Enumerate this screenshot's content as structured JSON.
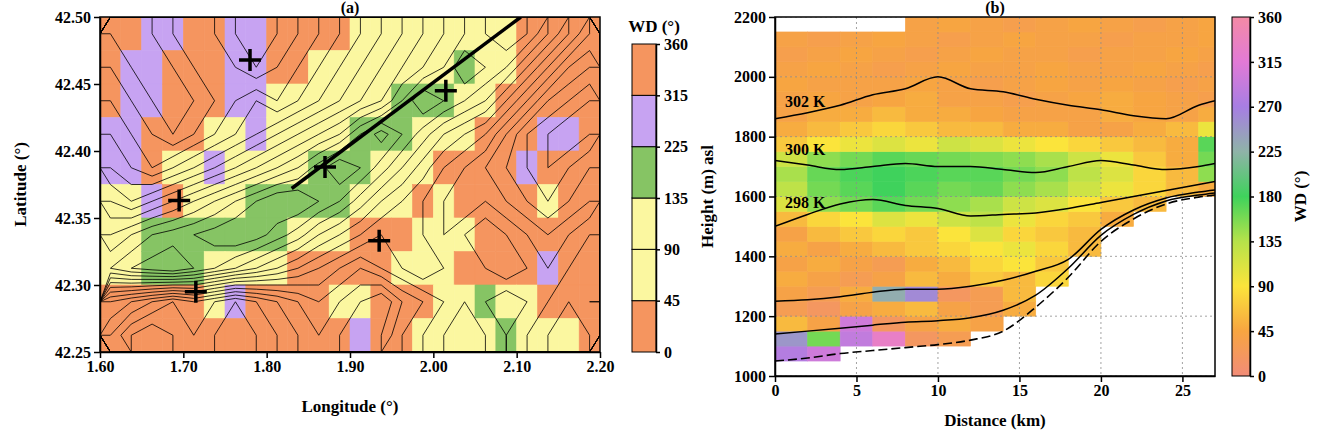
{
  "chart_data": [
    {
      "type": "map",
      "title": "(a)",
      "x_label": "Longitude (°)",
      "y_label": "Latitude (°)",
      "xlim": [
        1.6,
        2.2
      ],
      "ylim": [
        42.25,
        42.5
      ],
      "xticks": [
        {
          "value": 1.6,
          "label": "1.60"
        },
        {
          "value": 1.7,
          "label": "1.70"
        },
        {
          "value": 1.8,
          "label": "1.80"
        },
        {
          "value": 1.9,
          "label": "1.90"
        },
        {
          "value": 2.0,
          "label": "2.00"
        },
        {
          "value": 2.1,
          "label": "2.10"
        },
        {
          "value": 2.2,
          "label": "2.20"
        }
      ],
      "yticks": [
        42.25,
        {
          "value": 42.3,
          "label": "42.30"
        },
        42.35,
        {
          "value": 42.4,
          "label": "42.40"
        },
        42.45,
        {
          "value": 42.5,
          "label": "42.50"
        }
      ],
      "grid": false,
      "lon": [
        1.6125,
        1.6375,
        1.6625,
        1.6875,
        1.7125,
        1.7375,
        1.7625,
        1.7875,
        1.8125,
        1.8375,
        1.8625,
        1.8875,
        1.9125,
        1.9375,
        1.9625,
        1.9875,
        2.0125,
        2.0375,
        2.0625,
        2.0875,
        2.1125,
        2.1375,
        2.1625,
        2.1875
      ],
      "lat": [
        42.4875,
        42.4625,
        42.4375,
        42.4125,
        42.3875,
        42.3625,
        42.3375,
        42.3125,
        42.2875,
        42.2625
      ],
      "wd": [
        [
          20,
          330,
          300,
          280,
          20,
          40,
          300,
          270,
          330,
          10,
          30,
          350,
          60,
          80,
          70,
          100,
          60,
          80,
          120,
          100,
          20,
          30,
          340,
          10
        ],
        [
          40,
          300,
          280,
          320,
          10,
          350,
          290,
          300,
          20,
          340,
          60,
          80,
          70,
          100,
          90,
          110,
          130,
          160,
          100,
          60,
          30,
          10,
          350,
          20
        ],
        [
          10,
          270,
          290,
          350,
          30,
          20,
          310,
          280,
          60,
          80,
          100,
          70,
          90,
          120,
          140,
          170,
          150,
          80,
          60,
          40,
          20,
          340,
          320,
          30
        ],
        [
          300,
          280,
          320,
          20,
          40,
          60,
          80,
          290,
          100,
          70,
          90,
          110,
          150,
          170,
          160,
          120,
          80,
          60,
          30,
          350,
          10,
          300,
          280,
          20
        ],
        [
          280,
          260,
          40,
          60,
          80,
          300,
          100,
          90,
          120,
          80,
          140,
          180,
          170,
          130,
          100,
          70,
          40,
          20,
          10,
          330,
          300,
          20,
          40,
          10
        ],
        [
          60,
          80,
          300,
          20,
          90,
          110,
          130,
          150,
          170,
          200,
          190,
          150,
          120,
          90,
          60,
          40,
          70,
          30,
          350,
          20,
          40,
          60,
          10,
          30
        ],
        [
          80,
          100,
          150,
          170,
          190,
          200,
          180,
          160,
          140,
          110,
          80,
          60,
          40,
          30,
          20,
          60,
          80,
          100,
          40,
          30,
          10,
          350,
          20,
          40
        ],
        [
          100,
          130,
          160,
          180,
          150,
          120,
          90,
          70,
          50,
          30,
          20,
          10,
          350,
          30,
          60,
          80,
          50,
          30,
          20,
          10,
          30,
          300,
          320,
          20
        ],
        [
          20,
          10,
          350,
          20,
          40,
          60,
          300,
          330,
          20,
          30,
          40,
          60,
          80,
          350,
          10,
          30,
          100,
          120,
          140,
          90,
          60,
          40,
          20,
          10
        ],
        [
          10,
          20,
          30,
          15,
          20,
          350,
          10,
          20,
          30,
          40,
          20,
          330,
          300,
          10,
          40,
          60,
          90,
          110,
          130,
          150,
          120,
          80,
          60,
          40
        ]
      ],
      "elevation": [
        [
          2300,
          2400,
          2300,
          2200,
          2100,
          2200,
          2300,
          2400,
          2300,
          2200,
          2100,
          2000,
          1900,
          1800,
          1700,
          1600,
          1500,
          1400,
          1300,
          1200,
          1300,
          1500,
          1700,
          1900
        ],
        [
          2200,
          2300,
          2400,
          2300,
          2200,
          2100,
          2200,
          2300,
          2200,
          2100,
          2000,
          1900,
          1800,
          1700,
          1600,
          1500,
          1400,
          1200,
          1300,
          1400,
          1600,
          1800,
          2000,
          2100
        ],
        [
          2100,
          2200,
          2300,
          2400,
          2300,
          2200,
          2100,
          2000,
          2100,
          2000,
          1900,
          1800,
          1700,
          1600,
          1400,
          1200,
          1300,
          1400,
          1500,
          1700,
          1900,
          2100,
          2200,
          2300
        ],
        [
          2000,
          2100,
          2200,
          2300,
          2200,
          2100,
          2000,
          1900,
          1800,
          1700,
          1600,
          1500,
          1300,
          1150,
          1300,
          1450,
          1600,
          1700,
          1800,
          2000,
          2200,
          2300,
          2400,
          2300
        ],
        [
          1900,
          2000,
          2100,
          2000,
          1900,
          1800,
          1700,
          1600,
          1500,
          1400,
          1250,
          1100,
          1200,
          1350,
          1500,
          1650,
          1800,
          1900,
          2000,
          2100,
          2200,
          2300,
          2200,
          2100
        ],
        [
          1700,
          1800,
          1700,
          1600,
          1500,
          1400,
          1300,
          1200,
          1100,
          1100,
          1200,
          1300,
          1450,
          1600,
          1700,
          1800,
          1900,
          2000,
          1900,
          2000,
          2100,
          2200,
          2100,
          2000
        ],
        [
          1500,
          1400,
          1300,
          1250,
          1200,
          1150,
          1100,
          1150,
          1250,
          1350,
          1500,
          1600,
          1700,
          1800,
          1700,
          1800,
          1900,
          1800,
          1700,
          1800,
          1900,
          2000,
          1900,
          1800
        ],
        [
          1300,
          1200,
          1150,
          1100,
          1200,
          1300,
          1400,
          1500,
          1600,
          1700,
          1800,
          1900,
          2000,
          1900,
          1800,
          1700,
          1800,
          1900,
          1800,
          1700,
          1800,
          1900,
          1800,
          1700
        ],
        [
          2000,
          2100,
          2200,
          2300,
          2200,
          2300,
          2400,
          2300,
          2200,
          2100,
          2000,
          2100,
          2200,
          2300,
          2100,
          2000,
          1900,
          1800,
          1900,
          2000,
          1900,
          1800,
          1700,
          1800
        ],
        [
          2200,
          2400,
          2500,
          2400,
          2300,
          2400,
          2500,
          2400,
          2300,
          2200,
          2100,
          2200,
          2300,
          2200,
          2000,
          1900,
          1800,
          1700,
          1800,
          1900,
          1800,
          1700,
          1600,
          1700
        ]
      ],
      "contour_levels": [
        1100,
        1200,
        1300,
        1400,
        1500,
        1600,
        1700,
        1800,
        1900,
        2000,
        2100,
        2200,
        2300,
        2400,
        2500
      ],
      "markers": {
        "x": [
          1.78,
          2.015,
          1.87,
          1.695,
          1.935,
          1.715
        ],
        "y": [
          42.468,
          42.445,
          42.388,
          42.363,
          42.333,
          42.295
        ],
        "marker": "plus"
      },
      "transect": {
        "x": [
          1.83,
          2.105
        ],
        "y": [
          42.372,
          42.5
        ]
      },
      "colorbar": {
        "label": "WD (°)",
        "range": [
          0,
          360
        ],
        "ticks": [
          0,
          45,
          90,
          135,
          225,
          315,
          360
        ],
        "colors": [
          "#f5955f",
          "#fbf7a0",
          "#fbf7a0",
          "#86c464",
          "#c7a3f2",
          "#f5955f"
        ]
      }
    },
    {
      "type": "heatmap",
      "title": "(b)",
      "x_label": "Distance (km)",
      "y_label": "Height (m) asl",
      "xlim": [
        0,
        27
      ],
      "ylim": [
        1000,
        2200
      ],
      "xticks": [
        0,
        5,
        10,
        15,
        20,
        25
      ],
      "yticks": [
        1000,
        1200,
        1400,
        1600,
        1800,
        2000,
        2200
      ],
      "grid": true,
      "x": [
        1,
        3,
        5,
        7,
        9,
        11,
        13,
        15,
        17,
        19,
        21,
        23,
        25,
        27
      ],
      "heights": [
        1025,
        1075,
        1125,
        1175,
        1225,
        1275,
        1325,
        1375,
        1425,
        1475,
        1525,
        1575,
        1625,
        1675,
        1725,
        1775,
        1825,
        1875,
        1925,
        1975,
        2025,
        2075,
        2125,
        2175
      ],
      "wd": [
        [
          null,
          null,
          null,
          null,
          null,
          null,
          null,
          null,
          null,
          null,
          null,
          null,
          null,
          null
        ],
        [
          280,
          300,
          null,
          null,
          null,
          null,
          null,
          null,
          null,
          null,
          null,
          null,
          null,
          null
        ],
        [
          250,
          160,
          290,
          330,
          20,
          30,
          null,
          null,
          null,
          null,
          null,
          null,
          null,
          null
        ],
        [
          60,
          40,
          300,
          20,
          40,
          50,
          40,
          null,
          null,
          null,
          null,
          null,
          null,
          null
        ],
        [
          30,
          20,
          40,
          50,
          60,
          40,
          30,
          50,
          null,
          null,
          null,
          null,
          null,
          null
        ],
        [
          40,
          30,
          50,
          230,
          260,
          20,
          30,
          60,
          null,
          null,
          null,
          null,
          null,
          null
        ],
        [
          50,
          40,
          30,
          40,
          60,
          50,
          70,
          60,
          80,
          null,
          null,
          null,
          null,
          null
        ],
        [
          40,
          50,
          40,
          30,
          50,
          60,
          80,
          90,
          70,
          null,
          null,
          null,
          null,
          null
        ],
        [
          50,
          40,
          50,
          60,
          70,
          80,
          90,
          100,
          80,
          60,
          null,
          null,
          null,
          null
        ],
        [
          40,
          60,
          70,
          80,
          70,
          90,
          110,
          80,
          70,
          60,
          null,
          null,
          null,
          null
        ],
        [
          60,
          80,
          90,
          110,
          100,
          120,
          130,
          100,
          80,
          70,
          50,
          null,
          null,
          null
        ],
        [
          110,
          150,
          160,
          170,
          160,
          150,
          140,
          120,
          110,
          90,
          70,
          60,
          null,
          null
        ],
        [
          130,
          160,
          170,
          180,
          170,
          160,
          165,
          150,
          140,
          120,
          100,
          80,
          60,
          50
        ],
        [
          140,
          165,
          175,
          180,
          175,
          170,
          170,
          160,
          150,
          130,
          110,
          80,
          60,
          150
        ],
        [
          120,
          150,
          160,
          170,
          165,
          160,
          155,
          150,
          140,
          120,
          100,
          70,
          50,
          160
        ],
        [
          70,
          90,
          100,
          110,
          100,
          120,
          110,
          100,
          90,
          80,
          70,
          60,
          50,
          170
        ],
        [
          50,
          60,
          70,
          80,
          70,
          60,
          60,
          50,
          50,
          40,
          40,
          50,
          60,
          100
        ],
        [
          40,
          50,
          50,
          60,
          50,
          50,
          45,
          40,
          40,
          40,
          50,
          45,
          40,
          50
        ],
        [
          40,
          45,
          40,
          45,
          50,
          40,
          40,
          35,
          40,
          45,
          50,
          45,
          40,
          35
        ],
        [
          45,
          40,
          40,
          40,
          45,
          40,
          35,
          40,
          45,
          40,
          45,
          40,
          35,
          40
        ],
        [
          40,
          45,
          40,
          35,
          40,
          45,
          40,
          40,
          45,
          40,
          40,
          45,
          40,
          35
        ],
        [
          35,
          40,
          45,
          40,
          35,
          40,
          45,
          40,
          40,
          35,
          40,
          40,
          45,
          40
        ],
        [
          40,
          35,
          40,
          45,
          40,
          35,
          40,
          45,
          40,
          40,
          35,
          40,
          40,
          45
        ],
        [
          null,
          null,
          null,
          null,
          40,
          45,
          40,
          35,
          40,
          45,
          40,
          35,
          40,
          45
        ]
      ],
      "profile_x": [
        0,
        2,
        4,
        6,
        8,
        10,
        12,
        14,
        16,
        18,
        20,
        22,
        24,
        26,
        27
      ],
      "terrain": {
        "heights": [
          1050,
          1060,
          1075,
          1085,
          1095,
          1105,
          1120,
          1150,
          1230,
          1330,
          1450,
          1525,
          1575,
          1598,
          1605
        ],
        "line_style": "dashed"
      },
      "isentropes": [
        {
          "label": "302 K",
          "heights": [
            1860,
            1880,
            1905,
            1940,
            1960,
            2000,
            1960,
            1950,
            1925,
            1905,
            1890,
            1870,
            1860,
            1905,
            1920
          ]
        },
        {
          "label": "300 K",
          "heights": [
            1720,
            1705,
            1690,
            1700,
            1710,
            1700,
            1700,
            1690,
            1680,
            1700,
            1720,
            1705,
            1690,
            1700,
            1710
          ]
        },
        {
          "label": "298 K",
          "heights": [
            1500,
            1540,
            1575,
            1590,
            1570,
            1560,
            1535,
            1540,
            1545,
            1560,
            1580,
            1600,
            1620,
            1640,
            1650
          ]
        },
        {
          "heights": [
            1250,
            1255,
            1265,
            1280,
            1290,
            1290,
            1300,
            1320,
            1350,
            1390,
            1490,
            1555,
            1595,
            1615,
            1622
          ]
        },
        {
          "heights": [
            1140,
            1150,
            1160,
            1170,
            1180,
            1185,
            1195,
            1220,
            1270,
            1360,
            1470,
            1540,
            1585,
            1605,
            1612
          ]
        }
      ],
      "colorbar": {
        "label": "WD (°)",
        "range": [
          0,
          360
        ],
        "ticks": [
          0,
          45,
          90,
          135,
          180,
          225,
          270,
          315,
          360
        ],
        "colors": [
          "#f28c78",
          "#f7a541",
          "#fbe43b",
          "#b6e24a",
          "#3fd25c",
          "#8fb3a8",
          "#a77ee3",
          "#e27ad6",
          "#f38aa5"
        ]
      }
    }
  ]
}
